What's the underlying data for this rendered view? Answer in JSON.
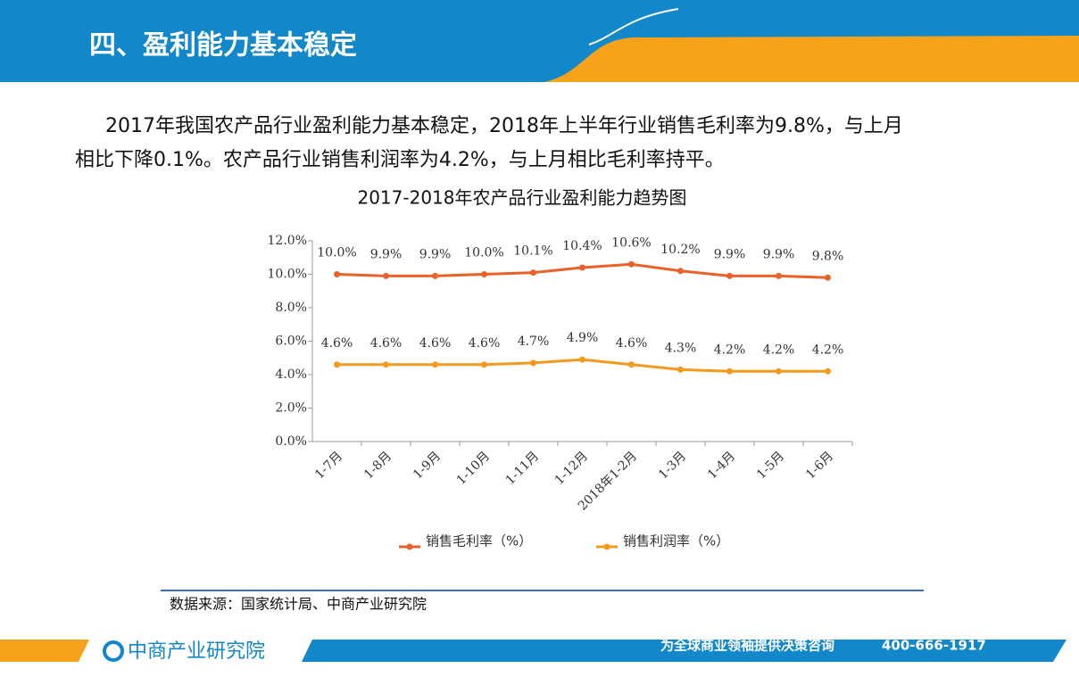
{
  "header": {
    "title": "四、盈利能力基本稳定"
  },
  "paragraph": [
    "2017年我国农产品行业盈利能力基本稳定，2018年上半年行业销售毛利率为9.8%，与上月",
    "相比下降0.1%。农产品行业销售利润率为4.2%，与上月相比毛利率持平。"
  ],
  "chart_data": {
    "type": "line",
    "title": "2017-2018年农产品行业盈利能力趋势图",
    "categories": [
      "1-7月",
      "1-8月",
      "1-9月",
      "1-10月",
      "1-11月",
      "1-12月",
      "2018年1-2月",
      "1-3月",
      "1-4月",
      "1-5月",
      "1-6月"
    ],
    "series": [
      {
        "name": "销售毛利率（%）",
        "color": "#e8622a",
        "values": [
          10.0,
          9.9,
          9.9,
          10.0,
          10.1,
          10.4,
          10.6,
          10.2,
          9.9,
          9.9,
          9.8
        ],
        "value_labels": [
          "10.0%",
          "9.9%",
          "9.9%",
          "10.0%",
          "10.1%",
          "10.4%",
          "10.6%",
          "10.2%",
          "9.9%",
          "9.9%",
          "9.8%"
        ]
      },
      {
        "name": "销售利润率（%）",
        "color": "#f39a1e",
        "values": [
          4.6,
          4.6,
          4.6,
          4.6,
          4.7,
          4.9,
          4.6,
          4.3,
          4.2,
          4.2,
          4.2
        ],
        "value_labels": [
          "4.6%",
          "4.6%",
          "4.6%",
          "4.6%",
          "4.7%",
          "4.9%",
          "4.6%",
          "4.3%",
          "4.2%",
          "4.2%",
          "4.2%"
        ]
      }
    ],
    "ylim": [
      0,
      12
    ],
    "yticks": [
      {
        "value": 0,
        "label": "0.0%"
      },
      {
        "value": 2,
        "label": "2.0%"
      },
      {
        "value": 4,
        "label": "4.0%"
      },
      {
        "value": 6,
        "label": "6.0%"
      },
      {
        "value": 8,
        "label": "8.0%"
      },
      {
        "value": 10,
        "label": "10.0%"
      },
      {
        "value": 12,
        "label": "12.0%"
      }
    ],
    "grid": false,
    "legend": "bottom"
  },
  "source": "数据来源：国家统计局、中商产业研究院",
  "footer": {
    "logo": "中商产业研究院",
    "slogan": "为全球商业领袖提供决策咨询",
    "phone": "400-666-1917"
  }
}
